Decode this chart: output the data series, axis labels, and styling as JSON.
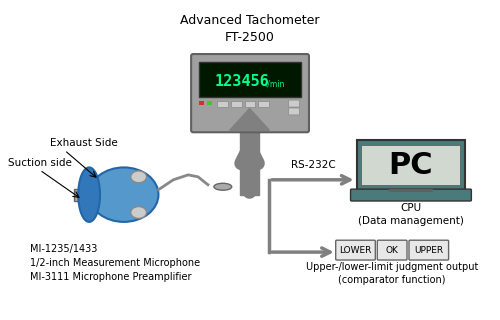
{
  "title": "Advanced Tachometer\nFT-2500",
  "tachometer_display": "123456",
  "tachometer_unit": "r/min",
  "rs232c_label": "RS-232C",
  "pc_label": "PC",
  "cpu_label": "CPU\n(Data management)",
  "exhaust_label": "Exhaust Side",
  "suction_label": "Suction side",
  "mic_label": "MI-1235/1433\n1/2-inch Measurement Microphone\nMI-3111 Microphone Preamplifier",
  "comparator_label": "Upper-/lower-limit judgment output\n(comparator function)",
  "lower_btn": "LOWER",
  "ok_btn": "OK",
  "upper_btn": "UPPER",
  "bg_color": "#ffffff",
  "arrow_color": "#808080",
  "tach_body_color": "#a0a0a0",
  "tach_screen_color": "#001800",
  "tach_display_color": "#00ff88",
  "pc_body_color": "#4a7a7a",
  "pc_screen_color": "#d0d8d0",
  "btn_color": "#e8e8e8",
  "pump_blue": "#5599cc"
}
